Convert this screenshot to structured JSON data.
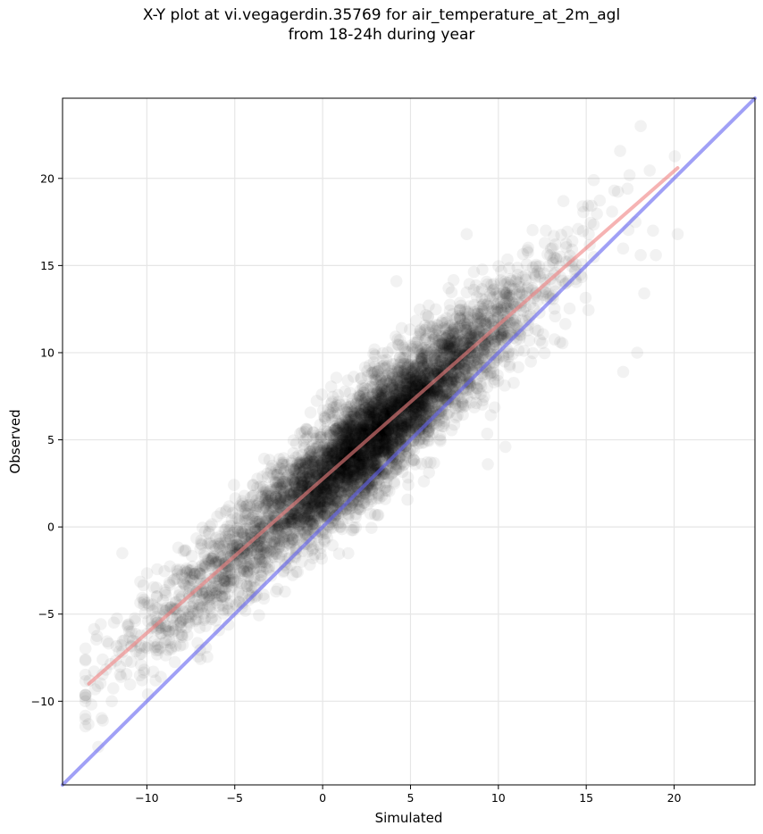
{
  "chart_data": {
    "type": "scatter",
    "title": "X-Y plot at vi.vegagerdin.35769 for air_temperature_at_2m_agl\nfrom 18-24h during year",
    "xlabel": "Simulated",
    "ylabel": "Observed",
    "xlim": [
      -14.8,
      24.6
    ],
    "ylim": [
      -14.8,
      24.6
    ],
    "xticks": [
      -10,
      -5,
      0,
      5,
      10,
      15,
      20
    ],
    "yticks": [
      -10,
      -5,
      0,
      5,
      10,
      15,
      20
    ],
    "xtick_labels": [
      "−10",
      "−5",
      "0",
      "5",
      "10",
      "15",
      "20"
    ],
    "ytick_labels": [
      "−10",
      "−5",
      "0",
      "5",
      "10",
      "15",
      "20"
    ],
    "grid": true,
    "colors": {
      "points": "#000000",
      "fit_line": "#f08080",
      "identity_line": "#6060f0"
    },
    "lines": [
      {
        "kind": "regression",
        "x": [
          -13.3,
          20.2
        ],
        "y": [
          -9.0,
          20.6
        ],
        "color": "#f08080"
      },
      {
        "kind": "identity",
        "x": [
          -14.8,
          24.6
        ],
        "y": [
          -14.8,
          24.6
        ],
        "color": "#6060f0"
      }
    ],
    "points_summary": {
      "count_approx": 6000,
      "x_range": [
        -13.5,
        20.2
      ],
      "y_range": [
        -10.0,
        23.0
      ],
      "relation": "observed ≈ 0.88 × simulated + 2.7"
    },
    "notable_points": [
      {
        "x": 18.1,
        "y": 23.0
      },
      {
        "x": 18.8,
        "y": 17.0
      },
      {
        "x": 20.2,
        "y": 16.8
      },
      {
        "x": 17.8,
        "y": 17.5
      },
      {
        "x": 16.6,
        "y": 19.3
      },
      {
        "x": 13.7,
        "y": 18.7
      },
      {
        "x": 14.8,
        "y": 18.4
      },
      {
        "x": 18.1,
        "y": 15.6
      },
      {
        "x": 18.3,
        "y": 13.4
      },
      {
        "x": 17.1,
        "y": 8.9
      },
      {
        "x": 17.9,
        "y": 10.0
      },
      {
        "x": 8.2,
        "y": 16.8
      },
      {
        "x": 4.2,
        "y": 14.1
      },
      {
        "x": 9.4,
        "y": 3.6
      },
      {
        "x": 10.4,
        "y": 4.6
      },
      {
        "x": -12.0,
        "y": -10.0
      },
      {
        "x": -13.0,
        "y": -8.3
      },
      {
        "x": -11.4,
        "y": -1.5
      },
      {
        "x": -6.0,
        "y": 0.6
      },
      {
        "x": -4.8,
        "y": 1.0
      }
    ]
  }
}
